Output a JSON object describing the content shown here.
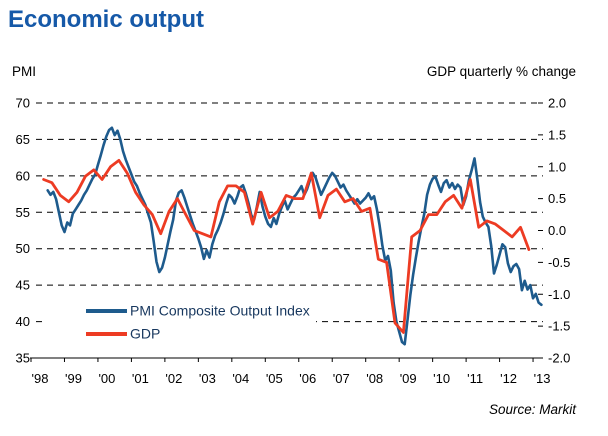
{
  "header": {
    "title": "Economic output"
  },
  "footer": {
    "source": "Source: Markit"
  },
  "colors": {
    "title": "#1659A8",
    "pmi_line": "#1E5B8D",
    "gdp_line": "#ED3B23",
    "axis_text": "#000000",
    "legend_text": "#17375E",
    "grid": "#000000",
    "background": "#FFFFFF"
  },
  "chart_data": {
    "type": "line",
    "title": "Economic output",
    "grid": "dashed horizontal gridlines, solid bottom axis",
    "legend_position": "inside lower-left",
    "source": "Source: Markit",
    "x_axis": {
      "labels": [
        "'98",
        "'99",
        "'00",
        "'01",
        "'02",
        "'03",
        "'04",
        "'05",
        "'06",
        "'07",
        "'08",
        "'09",
        "'10",
        "'11",
        "'12",
        "'13"
      ],
      "start_year": 1998,
      "end_year": 2013.3
    },
    "left_axis": {
      "label": "PMI",
      "ticks": [
        "70",
        "65",
        "60",
        "55",
        "50",
        "45",
        "40",
        "35"
      ],
      "range": [
        35,
        70
      ]
    },
    "right_axis": {
      "label": "GDP quarterly % change",
      "ticks": [
        "2.0",
        "1.5",
        "1.0",
        "0.5",
        "0.0",
        "-0.5",
        "-1.0",
        "-1.5",
        "-2.0"
      ],
      "range": [
        -2.0,
        2.0
      ]
    },
    "series": [
      {
        "name": "PMI Composite Output Index",
        "axis": "left",
        "color": "#1E5B8D",
        "frequency": "monthly",
        "start": 1998.5,
        "step": 0.0833333,
        "values": [
          58.0,
          57.4,
          57.8,
          56.8,
          55.0,
          53.2,
          52.3,
          53.6,
          53.2,
          54.8,
          55.4,
          56.0,
          56.6,
          57.4,
          58.0,
          58.8,
          59.6,
          60.2,
          61.5,
          62.8,
          64.2,
          65.4,
          66.3,
          66.6,
          65.6,
          66.2,
          65.0,
          63.4,
          62.2,
          61.2,
          60.2,
          59.2,
          58.6,
          57.6,
          56.8,
          56.0,
          54.8,
          53.6,
          51.0,
          48.2,
          46.8,
          47.4,
          48.8,
          50.6,
          52.4,
          54.0,
          56.6,
          57.7,
          58.0,
          57.0,
          55.8,
          54.6,
          53.4,
          52.4,
          51.4,
          50.2,
          48.6,
          49.8,
          48.8,
          50.6,
          51.8,
          52.6,
          53.6,
          54.8,
          56.2,
          57.4,
          57.0,
          56.2,
          57.2,
          58.4,
          58.7,
          57.6,
          56.2,
          54.6,
          54.0,
          55.8,
          57.8,
          55.8,
          54.4,
          53.4,
          53.0,
          54.2,
          53.4,
          54.8,
          55.8,
          56.6,
          55.4,
          56.2,
          57.0,
          57.4,
          58.0,
          58.6,
          57.4,
          58.2,
          59.4,
          60.4,
          59.8,
          58.6,
          57.4,
          58.2,
          59.0,
          59.8,
          60.4,
          60.0,
          59.2,
          58.4,
          58.8,
          58.0,
          57.4,
          56.8,
          56.2,
          56.8,
          56.2,
          56.6,
          57.0,
          57.6,
          56.8,
          57.2,
          55.4,
          53.2,
          50.4,
          48.4,
          49.0,
          47.0,
          42.6,
          40.0,
          38.6,
          37.2,
          36.9,
          40.2,
          43.6,
          46.4,
          48.8,
          51.0,
          53.0,
          54.8,
          57.4,
          58.8,
          59.6,
          59.9,
          58.8,
          57.8,
          59.0,
          59.4,
          58.4,
          59.0,
          58.2,
          58.8,
          58.4,
          56.0,
          57.2,
          59.4,
          60.8,
          62.4,
          59.6,
          56.4,
          54.4,
          53.6,
          53.0,
          50.4,
          46.6,
          47.8,
          49.2,
          50.6,
          50.2,
          48.0,
          46.8,
          47.6,
          47.9,
          47.2,
          44.3,
          45.6,
          44.4,
          45.0,
          43.2,
          43.8,
          42.6,
          42.3
        ]
      },
      {
        "name": "GDP",
        "axis": "right",
        "color": "#ED3B23",
        "frequency": "quarterly",
        "start": 1998.375,
        "step": 0.25,
        "values": [
          0.8,
          0.75,
          0.55,
          0.45,
          0.6,
          0.85,
          0.95,
          0.8,
          1.0,
          1.1,
          0.9,
          0.6,
          0.4,
          0.25,
          -0.05,
          0.3,
          0.5,
          0.25,
          0.0,
          -0.05,
          -0.1,
          0.45,
          0.7,
          0.7,
          0.6,
          0.1,
          0.6,
          0.2,
          0.3,
          0.55,
          0.5,
          0.5,
          0.9,
          0.2,
          0.55,
          0.65,
          0.45,
          0.5,
          0.3,
          0.35,
          -0.45,
          -0.5,
          -1.45,
          -1.6,
          -0.1,
          0.0,
          0.25,
          0.25,
          0.45,
          0.55,
          0.35,
          0.8,
          0.05,
          0.15,
          0.1,
          0.0,
          -0.1,
          0.05,
          -0.3
        ]
      }
    ]
  }
}
